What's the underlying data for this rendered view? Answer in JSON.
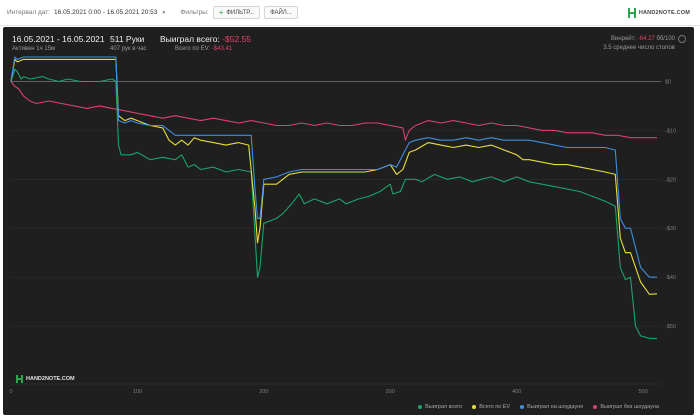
{
  "topbar": {
    "interval_label": "Интервал дат:",
    "date_range": "16.05.2021 0:00 - 16.05.2021 20:53",
    "filters_label": "Фильтры:",
    "filter_button": "ФИЛЬТР...",
    "file_button": "ФАЙЛ...",
    "logo_text": "HAND2NOTE.COM"
  },
  "stats": {
    "date_title": "16.05.2021 - 16.05.2021",
    "active": "Активен 1ч 15м",
    "hands": "511 Руки",
    "hands_rate": "407 рук в час",
    "won_total_label": "Выиграл всего:",
    "won_total_value": "-$52.55",
    "ev_label": "Всего по EV:",
    "ev_value": "-$43.41",
    "winrate_label": "Винрейт:",
    "winrate_value": "-64.27",
    "winrate_unit": "бб/100",
    "tables": "3.5 среднее число столов"
  },
  "watermark": "HAND2NOTE.COM",
  "colors": {
    "won": "#19a36a",
    "ev": "#e8df3a",
    "showdown": "#3d8fe0",
    "nonshowdown": "#d9416d",
    "zero": "#8a8a8a"
  },
  "chart_data": {
    "type": "line",
    "xlim": [
      0,
      511
    ],
    "ylim": [
      -60,
      5
    ],
    "x_ticks": [
      0,
      100,
      200,
      300,
      400,
      500
    ],
    "y_ticks": [
      0,
      -10,
      -20,
      -30,
      -40,
      -50
    ],
    "y_tick_labels": [
      "$0",
      "-$10",
      "-$20",
      "-$30",
      "-$40",
      "-$50"
    ],
    "legend": "bottom-right",
    "series": [
      {
        "name": "Выиграл всего",
        "key": "won",
        "points": [
          [
            0,
            0
          ],
          [
            3,
            2.5
          ],
          [
            5,
            2
          ],
          [
            8,
            0.5
          ],
          [
            10,
            1
          ],
          [
            15,
            0.5
          ],
          [
            25,
            1
          ],
          [
            30,
            0.5
          ],
          [
            38,
            0
          ],
          [
            45,
            0.5
          ],
          [
            55,
            0
          ],
          [
            70,
            0
          ],
          [
            80,
            0.5
          ],
          [
            83,
            0
          ],
          [
            85,
            -13
          ],
          [
            87,
            -15
          ],
          [
            95,
            -15
          ],
          [
            100,
            -14.5
          ],
          [
            110,
            -16
          ],
          [
            120,
            -15.5
          ],
          [
            130,
            -16
          ],
          [
            135,
            -15
          ],
          [
            140,
            -17.5
          ],
          [
            145,
            -17
          ],
          [
            150,
            -18
          ],
          [
            160,
            -17.5
          ],
          [
            170,
            -18.5
          ],
          [
            180,
            -18
          ],
          [
            190,
            -18.5
          ],
          [
            195,
            -40
          ],
          [
            197,
            -38
          ],
          [
            200,
            -29
          ],
          [
            210,
            -28
          ],
          [
            215,
            -27
          ],
          [
            222,
            -25
          ],
          [
            228,
            -23
          ],
          [
            232,
            -25
          ],
          [
            240,
            -24
          ],
          [
            250,
            -25
          ],
          [
            260,
            -24
          ],
          [
            265,
            -25
          ],
          [
            275,
            -24
          ],
          [
            283,
            -23.5
          ],
          [
            292,
            -22.5
          ],
          [
            300,
            -21
          ],
          [
            302,
            -23
          ],
          [
            308,
            -22.5
          ],
          [
            312,
            -20
          ],
          [
            320,
            -20
          ],
          [
            325,
            -20.5
          ],
          [
            335,
            -19
          ],
          [
            345,
            -20
          ],
          [
            355,
            -19.5
          ],
          [
            365,
            -20.5
          ],
          [
            372,
            -20
          ],
          [
            380,
            -19.5
          ],
          [
            390,
            -20.5
          ],
          [
            400,
            -19.5
          ],
          [
            410,
            -20.5
          ],
          [
            420,
            -21
          ],
          [
            430,
            -21.5
          ],
          [
            440,
            -22
          ],
          [
            450,
            -22.5
          ],
          [
            460,
            -23.5
          ],
          [
            470,
            -24.5
          ],
          [
            478,
            -25.5
          ],
          [
            482,
            -38
          ],
          [
            486,
            -40.5
          ],
          [
            490,
            -40
          ],
          [
            494,
            -50
          ],
          [
            498,
            -52
          ],
          [
            505,
            -52.5
          ],
          [
            511,
            -52.55
          ]
        ]
      },
      {
        "name": "Всего по EV",
        "key": "ev",
        "points": [
          [
            0,
            0
          ],
          [
            3,
            4.5
          ],
          [
            5,
            4
          ],
          [
            10,
            4.5
          ],
          [
            20,
            4.5
          ],
          [
            40,
            4.5
          ],
          [
            60,
            4.5
          ],
          [
            80,
            4.5
          ],
          [
            83,
            4.5
          ],
          [
            85,
            -7
          ],
          [
            90,
            -8
          ],
          [
            95,
            -7.5
          ],
          [
            100,
            -8
          ],
          [
            110,
            -9
          ],
          [
            120,
            -9.5
          ],
          [
            125,
            -12
          ],
          [
            130,
            -13
          ],
          [
            135,
            -12
          ],
          [
            140,
            -13
          ],
          [
            145,
            -11.5
          ],
          [
            150,
            -12
          ],
          [
            160,
            -12.5
          ],
          [
            170,
            -13
          ],
          [
            180,
            -12.5
          ],
          [
            188,
            -13
          ],
          [
            193,
            -26
          ],
          [
            195,
            -33
          ],
          [
            197,
            -30
          ],
          [
            200,
            -21
          ],
          [
            210,
            -21
          ],
          [
            220,
            -19
          ],
          [
            230,
            -18.5
          ],
          [
            240,
            -18.5
          ],
          [
            250,
            -18.5
          ],
          [
            260,
            -18.5
          ],
          [
            270,
            -18.5
          ],
          [
            280,
            -18.5
          ],
          [
            290,
            -18
          ],
          [
            300,
            -17
          ],
          [
            305,
            -19
          ],
          [
            310,
            -18
          ],
          [
            315,
            -14.5
          ],
          [
            320,
            -14
          ],
          [
            330,
            -12.5
          ],
          [
            340,
            -13
          ],
          [
            350,
            -13.5
          ],
          [
            360,
            -13
          ],
          [
            370,
            -13.5
          ],
          [
            380,
            -13
          ],
          [
            385,
            -13.5
          ],
          [
            390,
            -14
          ],
          [
            395,
            -14.5
          ],
          [
            400,
            -15
          ],
          [
            405,
            -16
          ],
          [
            410,
            -16
          ],
          [
            420,
            -16.5
          ],
          [
            430,
            -17
          ],
          [
            440,
            -17
          ],
          [
            450,
            -17.5
          ],
          [
            460,
            -18
          ],
          [
            470,
            -18.5
          ],
          [
            478,
            -19
          ],
          [
            482,
            -32
          ],
          [
            486,
            -35
          ],
          [
            490,
            -35
          ],
          [
            498,
            -41
          ],
          [
            505,
            -43.5
          ],
          [
            511,
            -43.41
          ]
        ]
      },
      {
        "name": "Выиграл на шоудауне",
        "key": "showdown",
        "points": [
          [
            0,
            0
          ],
          [
            3,
            5
          ],
          [
            5,
            4.5
          ],
          [
            10,
            5
          ],
          [
            30,
            5
          ],
          [
            50,
            5
          ],
          [
            70,
            5
          ],
          [
            80,
            5
          ],
          [
            83,
            5
          ],
          [
            85,
            -8
          ],
          [
            90,
            -8.5
          ],
          [
            95,
            -8
          ],
          [
            100,
            -8.5
          ],
          [
            110,
            -9
          ],
          [
            120,
            -9
          ],
          [
            125,
            -10
          ],
          [
            130,
            -11
          ],
          [
            140,
            -11
          ],
          [
            150,
            -11
          ],
          [
            160,
            -11
          ],
          [
            170,
            -11
          ],
          [
            188,
            -11
          ],
          [
            190,
            -11
          ],
          [
            193,
            -22
          ],
          [
            195,
            -28
          ],
          [
            197,
            -28
          ],
          [
            200,
            -20
          ],
          [
            210,
            -19.5
          ],
          [
            220,
            -18.5
          ],
          [
            230,
            -18
          ],
          [
            240,
            -18
          ],
          [
            250,
            -18
          ],
          [
            260,
            -18
          ],
          [
            270,
            -18
          ],
          [
            280,
            -18
          ],
          [
            290,
            -18
          ],
          [
            300,
            -17
          ],
          [
            305,
            -17.5
          ],
          [
            310,
            -15
          ],
          [
            315,
            -12.5
          ],
          [
            320,
            -12
          ],
          [
            330,
            -11.5
          ],
          [
            340,
            -12
          ],
          [
            350,
            -12
          ],
          [
            360,
            -11.5
          ],
          [
            370,
            -12
          ],
          [
            380,
            -11.5
          ],
          [
            390,
            -12
          ],
          [
            400,
            -12
          ],
          [
            410,
            -12
          ],
          [
            420,
            -12.5
          ],
          [
            430,
            -13
          ],
          [
            440,
            -13.5
          ],
          [
            450,
            -13.5
          ],
          [
            460,
            -13.5
          ],
          [
            470,
            -13.5
          ],
          [
            478,
            -14
          ],
          [
            482,
            -28
          ],
          [
            486,
            -30
          ],
          [
            490,
            -30
          ],
          [
            498,
            -38
          ],
          [
            505,
            -40
          ],
          [
            511,
            -40
          ]
        ]
      },
      {
        "name": "Выиграл без шоудауна",
        "key": "nonshowdown",
        "points": [
          [
            0,
            0
          ],
          [
            3,
            -1
          ],
          [
            6,
            -1.5
          ],
          [
            10,
            -3
          ],
          [
            15,
            -4
          ],
          [
            20,
            -4.5
          ],
          [
            30,
            -4
          ],
          [
            40,
            -4.5
          ],
          [
            50,
            -5
          ],
          [
            60,
            -5.5
          ],
          [
            70,
            -5
          ],
          [
            80,
            -5.5
          ],
          [
            90,
            -6
          ],
          [
            100,
            -6.5
          ],
          [
            110,
            -7
          ],
          [
            120,
            -7.5
          ],
          [
            130,
            -7
          ],
          [
            140,
            -7.5
          ],
          [
            150,
            -8
          ],
          [
            160,
            -7.5
          ],
          [
            170,
            -8
          ],
          [
            180,
            -8.5
          ],
          [
            190,
            -8
          ],
          [
            200,
            -8.5
          ],
          [
            210,
            -9
          ],
          [
            220,
            -9
          ],
          [
            230,
            -8.5
          ],
          [
            240,
            -9
          ],
          [
            250,
            -8.5
          ],
          [
            260,
            -9
          ],
          [
            270,
            -9
          ],
          [
            280,
            -8.5
          ],
          [
            290,
            -8.5
          ],
          [
            300,
            -9
          ],
          [
            310,
            -9.5
          ],
          [
            312,
            -12
          ],
          [
            315,
            -10
          ],
          [
            320,
            -9
          ],
          [
            330,
            -8
          ],
          [
            340,
            -8.5
          ],
          [
            350,
            -8
          ],
          [
            360,
            -8.5
          ],
          [
            370,
            -9
          ],
          [
            380,
            -8.5
          ],
          [
            390,
            -9
          ],
          [
            400,
            -9
          ],
          [
            410,
            -9.5
          ],
          [
            420,
            -10
          ],
          [
            430,
            -10
          ],
          [
            440,
            -10.5
          ],
          [
            450,
            -10.5
          ],
          [
            460,
            -10.5
          ],
          [
            470,
            -11
          ],
          [
            480,
            -11
          ],
          [
            490,
            -11.5
          ],
          [
            500,
            -11.5
          ],
          [
            511,
            -11.5
          ]
        ]
      }
    ]
  }
}
